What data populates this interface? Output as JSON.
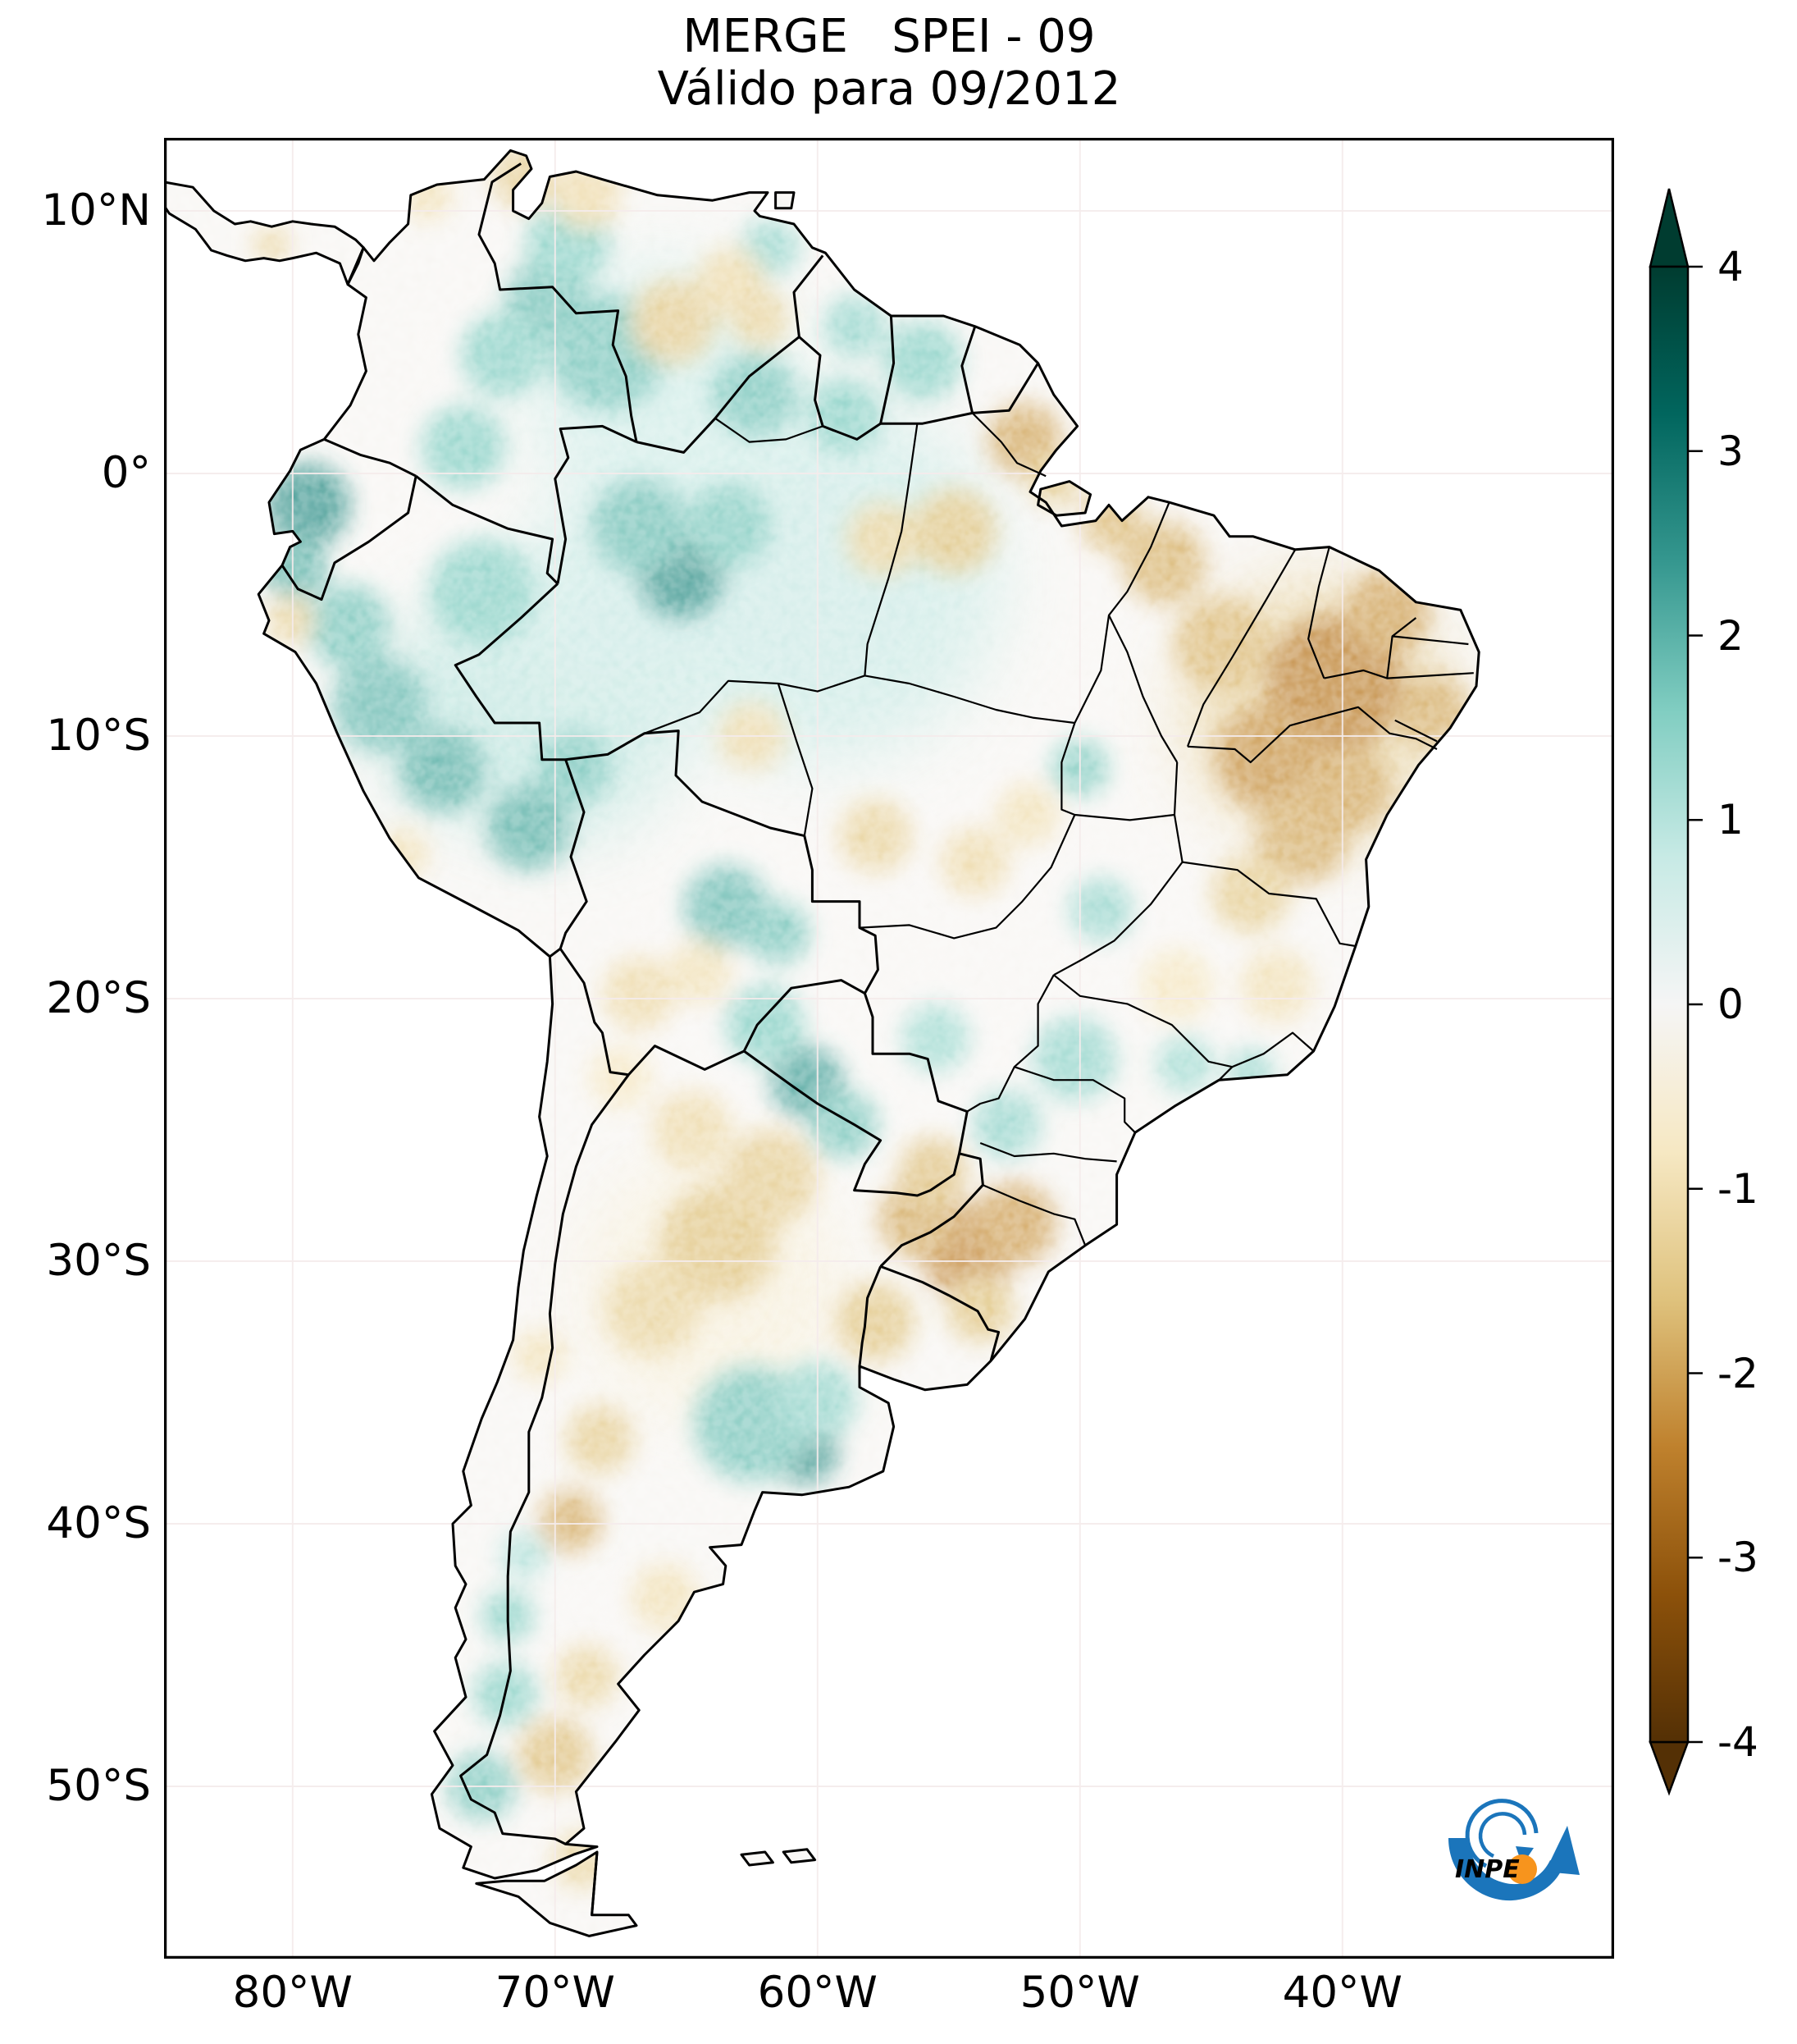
{
  "title": "MERGE   SPEI - 09",
  "subtitle": "Válido para 09/2012",
  "axes": {
    "lat_ticks": [
      {
        "label": "10°N",
        "lat": 10
      },
      {
        "label": "0°",
        "lat": 0
      },
      {
        "label": "10°S",
        "lat": -10
      },
      {
        "label": "20°S",
        "lat": -20
      },
      {
        "label": "30°S",
        "lat": -30
      },
      {
        "label": "40°S",
        "lat": -40
      },
      {
        "label": "50°S",
        "lat": -50
      }
    ],
    "lon_ticks": [
      {
        "label": "80°W",
        "lon": -80
      },
      {
        "label": "70°W",
        "lon": -70
      },
      {
        "label": "60°W",
        "lon": -60
      },
      {
        "label": "50°W",
        "lon": -50
      },
      {
        "label": "40°W",
        "lon": -40
      }
    ]
  },
  "colorbar": {
    "vmin": -4,
    "vmax": 4,
    "colormap": "BrBG",
    "extend": "both",
    "ticks": [
      {
        "label": "4",
        "value": 4
      },
      {
        "label": "3",
        "value": 3
      },
      {
        "label": "2",
        "value": 2
      },
      {
        "label": "1",
        "value": 1
      },
      {
        "label": "0",
        "value": 0
      },
      {
        "label": "-1",
        "value": -1
      },
      {
        "label": "-2",
        "value": -2
      },
      {
        "label": "-3",
        "value": -3
      },
      {
        "label": "-4",
        "value": -4
      }
    ],
    "gradient_top_to_bottom": [
      "#003c30",
      "#01665e",
      "#35978f",
      "#80cdc1",
      "#c7eae5",
      "#f5f5f5",
      "#f6e8c3",
      "#dfc27d",
      "#bf812d",
      "#8c510a",
      "#543005"
    ]
  },
  "map": {
    "land_color": "#f7f5f2",
    "ocean_color": "#ffffff",
    "border_color": "#000000",
    "graticule_color": "#f5ecec"
  },
  "logo": {
    "text": "INPE",
    "blue": "#1b75bb",
    "orange": "#f7941d"
  },
  "chart_data": {
    "type": "heatmap",
    "title": "MERGE   SPEI - 09",
    "subtitle": "Válido para 09/2012",
    "index": "SPEI-09",
    "valid_for": "09/2012",
    "region": "South America",
    "extent": {
      "lon_min": -84.9,
      "lon_max": -29.65,
      "lat_min": -56.57,
      "lat_max": 12.78
    },
    "colorbar_range": [
      -4,
      4
    ],
    "anomalies": [
      {
        "lon": -60.0,
        "lat": -4.0,
        "spei": 0.5,
        "r": 7.0
      },
      {
        "lon": -70.0,
        "lat": -9.0,
        "spei": 0.6,
        "r": 5.0
      },
      {
        "lon": -66.0,
        "lat": 3.0,
        "spei": 0.45,
        "r": 5.0
      },
      {
        "lon": -73.0,
        "lat": -9.0,
        "spei": 0.6,
        "r": 4.0
      },
      {
        "lon": -68.0,
        "lat": -5.0,
        "spei": 0.5,
        "r": 4.0
      },
      {
        "lon": -64.0,
        "lat": -31.0,
        "spei": -0.3,
        "r": 5.0
      },
      {
        "lon": -41.0,
        "lat": -9.0,
        "spei": -0.9,
        "r": 5.0
      },
      {
        "lon": -79.4,
        "lat": -1.2,
        "spei": 2.2,
        "r": 1.6
      },
      {
        "lon": -79.9,
        "lat": -3.6,
        "spei": 1.6,
        "r": 1.2
      },
      {
        "lon": -77.9,
        "lat": -5.8,
        "spei": 1.2,
        "r": 1.6
      },
      {
        "lon": -76.7,
        "lat": -8.8,
        "spei": 1.4,
        "r": 1.8
      },
      {
        "lon": -74.3,
        "lat": -11.3,
        "spei": 1.6,
        "r": 1.6
      },
      {
        "lon": -71.0,
        "lat": -13.5,
        "spei": 1.6,
        "r": 1.6
      },
      {
        "lon": -69.3,
        "lat": -11.2,
        "spei": 1.2,
        "r": 1.4
      },
      {
        "lon": -72.8,
        "lat": -4.5,
        "spei": 1.0,
        "r": 2.0
      },
      {
        "lon": -70.3,
        "lat": 6.6,
        "spei": 1.3,
        "r": 1.6
      },
      {
        "lon": -68.0,
        "lat": 4.6,
        "spei": 1.2,
        "r": 2.2
      },
      {
        "lon": -72.0,
        "lat": 4.5,
        "spei": 1.0,
        "r": 1.6
      },
      {
        "lon": -69.5,
        "lat": 8.8,
        "spei": 1.0,
        "r": 1.6
      },
      {
        "lon": -73.5,
        "lat": 1.0,
        "spei": 1.0,
        "r": 1.6
      },
      {
        "lon": -65.2,
        "lat": -3.9,
        "spei": 2.2,
        "r": 1.6
      },
      {
        "lon": -66.8,
        "lat": -2.0,
        "spei": 1.3,
        "r": 1.8
      },
      {
        "lon": -63.4,
        "lat": -2.0,
        "spei": 1.1,
        "r": 1.6
      },
      {
        "lon": -62.4,
        "lat": 3.0,
        "spei": 1.2,
        "r": 1.6
      },
      {
        "lon": -59.0,
        "lat": 2.2,
        "spei": 1.0,
        "r": 1.4
      },
      {
        "lon": -56.0,
        "lat": 4.3,
        "spei": 1.0,
        "r": 1.5
      },
      {
        "lon": -58.6,
        "lat": 5.6,
        "spei": 0.9,
        "r": 1.2
      },
      {
        "lon": -61.8,
        "lat": 8.6,
        "spei": 0.9,
        "r": 1.1
      },
      {
        "lon": -63.5,
        "lat": -16.5,
        "spei": 1.4,
        "r": 1.6
      },
      {
        "lon": -61.5,
        "lat": -17.5,
        "spei": 1.2,
        "r": 1.2
      },
      {
        "lon": -60.4,
        "lat": -23.2,
        "spei": 1.9,
        "r": 1.4
      },
      {
        "lon": -59.0,
        "lat": -24.8,
        "spei": 1.2,
        "r": 1.3
      },
      {
        "lon": -62.0,
        "lat": -21.0,
        "spei": 1.0,
        "r": 1.5
      },
      {
        "lon": -60.5,
        "lat": -37.2,
        "spei": 2.2,
        "r": 1.3
      },
      {
        "lon": -62.5,
        "lat": -36.2,
        "spei": 1.2,
        "r": 2.2
      },
      {
        "lon": -60.0,
        "lat": -35.3,
        "spei": 0.9,
        "r": 1.5
      },
      {
        "lon": -71.8,
        "lat": -43.5,
        "spei": 1.0,
        "r": 1.0
      },
      {
        "lon": -71.9,
        "lat": -46.5,
        "spei": 1.0,
        "r": 1.2
      },
      {
        "lon": -72.8,
        "lat": -50.0,
        "spei": 1.2,
        "r": 1.3
      },
      {
        "lon": -71.2,
        "lat": -41.2,
        "spei": 0.7,
        "r": 0.9
      },
      {
        "lon": -50.2,
        "lat": -22.3,
        "spei": 0.9,
        "r": 1.6
      },
      {
        "lon": -52.8,
        "lat": -24.8,
        "spei": 0.9,
        "r": 1.3
      },
      {
        "lon": -46.0,
        "lat": -22.5,
        "spei": 0.8,
        "r": 1.1
      },
      {
        "lon": -43.5,
        "lat": -22.8,
        "spei": 0.9,
        "r": 0.9
      },
      {
        "lon": -50.0,
        "lat": -11.2,
        "spei": 1.1,
        "r": 1.1
      },
      {
        "lon": -49.2,
        "lat": -16.6,
        "spei": 0.9,
        "r": 1.2
      },
      {
        "lon": -55.5,
        "lat": -21.5,
        "spei": 0.8,
        "r": 1.3
      },
      {
        "lon": -40.3,
        "lat": -8.0,
        "spei": -2.1,
        "r": 2.6
      },
      {
        "lon": -42.8,
        "lat": -10.8,
        "spei": -1.8,
        "r": 2.0
      },
      {
        "lon": -38.3,
        "lat": -5.3,
        "spei": -1.6,
        "r": 1.6
      },
      {
        "lon": -36.6,
        "lat": -9.0,
        "spei": -1.4,
        "r": 1.4
      },
      {
        "lon": -44.6,
        "lat": -6.5,
        "spei": -1.2,
        "r": 1.8
      },
      {
        "lon": -41.5,
        "lat": -13.8,
        "spei": -1.4,
        "r": 1.8
      },
      {
        "lon": -39.8,
        "lat": -12.0,
        "spei": -1.5,
        "r": 1.6
      },
      {
        "lon": -43.5,
        "lat": -16.0,
        "spei": -0.9,
        "r": 1.5
      },
      {
        "lon": -46.8,
        "lat": -3.4,
        "spei": -1.3,
        "r": 1.6
      },
      {
        "lon": -48.8,
        "lat": -1.8,
        "spei": -1.2,
        "r": 1.2
      },
      {
        "lon": -52.1,
        "lat": 1.3,
        "spei": -1.5,
        "r": 1.4
      },
      {
        "lon": -51.0,
        "lat": -0.2,
        "spei": -1.0,
        "r": 1.0
      },
      {
        "lon": -54.8,
        "lat": -2.2,
        "spei": -1.0,
        "r": 1.6
      },
      {
        "lon": -57.5,
        "lat": -2.5,
        "spei": -0.8,
        "r": 1.4
      },
      {
        "lon": -71.2,
        "lat": 11.3,
        "spei": -0.9,
        "r": 1.2
      },
      {
        "lon": -68.8,
        "lat": 10.6,
        "spei": -0.7,
        "r": 1.3
      },
      {
        "lon": -65.5,
        "lat": 5.8,
        "spei": -0.9,
        "r": 1.6
      },
      {
        "lon": -63.3,
        "lat": 7.3,
        "spei": -0.7,
        "r": 1.3
      },
      {
        "lon": -62.2,
        "lat": 5.9,
        "spei": -0.8,
        "r": 1.1
      },
      {
        "lon": -74.9,
        "lat": 10.6,
        "spei": -0.6,
        "r": 1.0
      },
      {
        "lon": -54.3,
        "lat": -29.6,
        "spei": -2.0,
        "r": 1.8
      },
      {
        "lon": -52.5,
        "lat": -28.6,
        "spei": -1.6,
        "r": 1.6
      },
      {
        "lon": -56.2,
        "lat": -28.4,
        "spei": -1.4,
        "r": 1.5
      },
      {
        "lon": -55.6,
        "lat": -26.6,
        "spei": -1.1,
        "r": 1.3
      },
      {
        "lon": -57.8,
        "lat": -32.3,
        "spei": -1.0,
        "r": 1.5
      },
      {
        "lon": -53.8,
        "lat": -31.8,
        "spei": -1.0,
        "r": 1.3
      },
      {
        "lon": -63.8,
        "lat": -29.3,
        "spei": -1.0,
        "r": 2.2
      },
      {
        "lon": -66.3,
        "lat": -31.8,
        "spei": -0.8,
        "r": 1.8
      },
      {
        "lon": -61.8,
        "lat": -26.8,
        "spei": -0.9,
        "r": 1.8
      },
      {
        "lon": -64.8,
        "lat": -25.0,
        "spei": -0.7,
        "r": 1.5
      },
      {
        "lon": -69.4,
        "lat": -39.9,
        "spei": -1.4,
        "r": 1.2
      },
      {
        "lon": -68.3,
        "lat": -36.8,
        "spei": -0.9,
        "r": 1.3
      },
      {
        "lon": -70.0,
        "lat": -48.8,
        "spei": -1.1,
        "r": 1.4
      },
      {
        "lon": -68.8,
        "lat": -45.8,
        "spei": -0.8,
        "r": 1.2
      },
      {
        "lon": -69.0,
        "lat": -52.8,
        "spei": -0.8,
        "r": 1.1
      },
      {
        "lon": -65.8,
        "lat": -42.8,
        "spei": -0.6,
        "r": 1.3
      },
      {
        "lon": -67.5,
        "lat": -23.0,
        "spei": -0.5,
        "r": 1.2
      },
      {
        "lon": -70.6,
        "lat": -33.6,
        "spei": -0.6,
        "r": 1.0
      },
      {
        "lon": -66.8,
        "lat": -19.8,
        "spei": -0.7,
        "r": 1.4
      },
      {
        "lon": -64.5,
        "lat": -19.0,
        "spei": -0.6,
        "r": 1.2
      },
      {
        "lon": -57.8,
        "lat": -13.8,
        "spei": -0.8,
        "r": 1.4
      },
      {
        "lon": -54.0,
        "lat": -14.8,
        "spei": -0.7,
        "r": 1.3
      },
      {
        "lon": -52.0,
        "lat": -13.0,
        "spei": -0.6,
        "r": 1.2
      },
      {
        "lon": -62.5,
        "lat": -10.0,
        "spei": -0.7,
        "r": 1.3
      },
      {
        "lon": -80.1,
        "lat": -5.6,
        "spei": -0.8,
        "r": 0.9
      },
      {
        "lon": -75.8,
        "lat": -14.5,
        "spei": -0.6,
        "r": 1.0
      },
      {
        "lon": -80.8,
        "lat": 8.7,
        "spei": -0.8,
        "r": 0.7
      },
      {
        "lon": -46.3,
        "lat": -19.5,
        "spei": -0.5,
        "r": 1.4
      },
      {
        "lon": -42.5,
        "lat": -19.5,
        "spei": -0.6,
        "r": 1.4
      }
    ]
  }
}
